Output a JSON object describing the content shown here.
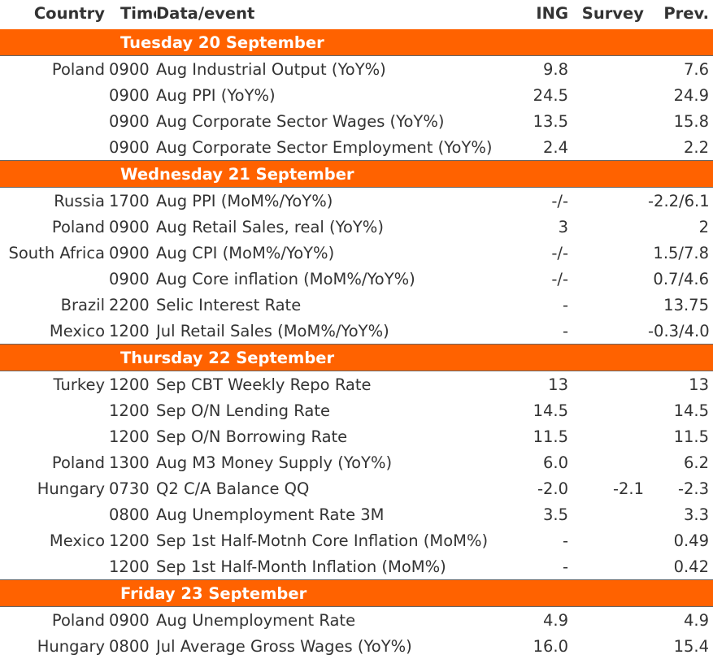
{
  "header": {
    "country": "Country",
    "time": "Time",
    "event": "Data/event",
    "ing": "ING",
    "survey": "Survey",
    "prev": "Prev."
  },
  "days": [
    {
      "label": "Tuesday 20 September",
      "rows": [
        {
          "country": "Poland",
          "time": "0900",
          "event": "Aug Industrial Output (YoY%)",
          "ing": "9.8",
          "survey": "",
          "prev": "7.6"
        },
        {
          "country": "",
          "time": "0900",
          "event": "Aug PPI (YoY%)",
          "ing": "24.5",
          "survey": "",
          "prev": "24.9"
        },
        {
          "country": "",
          "time": "0900",
          "event": "Aug Corporate Sector Wages (YoY%)",
          "ing": "13.5",
          "survey": "",
          "prev": "15.8"
        },
        {
          "country": "",
          "time": "0900",
          "event": "Aug Corporate Sector Employment (YoY%)",
          "ing": "2.4",
          "survey": "",
          "prev": "2.2"
        }
      ]
    },
    {
      "label": "Wednesday 21 September",
      "rows": [
        {
          "country": "Russia",
          "time": "1700",
          "event": "Aug PPI (MoM%/YoY%)",
          "ing": "-/-",
          "survey": "",
          "prev": "-2.2/6.1"
        },
        {
          "country": "Poland",
          "time": "0900",
          "event": "Aug Retail Sales, real (YoY%)",
          "ing": "3",
          "survey": "",
          "prev": "2"
        },
        {
          "country": "South Africa",
          "time": "0900",
          "event": "Aug CPI (MoM%/YoY%)",
          "ing": "-/-",
          "survey": "",
          "prev": "1.5/7.8"
        },
        {
          "country": "",
          "time": "0900",
          "event": "Aug Core inflation (MoM%/YoY%)",
          "ing": "-/-",
          "survey": "",
          "prev": "0.7/4.6"
        },
        {
          "country": "Brazil",
          "time": "2200",
          "event": "Selic Interest Rate",
          "ing": "-",
          "survey": "",
          "prev": "13.75"
        },
        {
          "country": "Mexico",
          "time": "1200",
          "event": "Jul Retail Sales (MoM%/YoY%)",
          "ing": "-",
          "survey": "",
          "prev": "-0.3/4.0"
        }
      ]
    },
    {
      "label": "Thursday 22 September",
      "rows": [
        {
          "country": "Turkey",
          "time": "1200",
          "event": "Sep CBT Weekly Repo Rate",
          "ing": "13",
          "survey": "",
          "prev": "13"
        },
        {
          "country": "",
          "time": "1200",
          "event": "Sep O/N Lending Rate",
          "ing": "14.5",
          "survey": "",
          "prev": "14.5"
        },
        {
          "country": "",
          "time": "1200",
          "event": "Sep O/N Borrowing Rate",
          "ing": "11.5",
          "survey": "",
          "prev": "11.5"
        },
        {
          "country": "Poland",
          "time": "1300",
          "event": "Aug M3 Money Supply (YoY%)",
          "ing": "6.0",
          "survey": "",
          "prev": "6.2"
        },
        {
          "country": "Hungary",
          "time": "0730",
          "event": "Q2 C/A Balance QQ",
          "ing": "-2.0",
          "survey": "-2.1",
          "prev": "-2.3"
        },
        {
          "country": "",
          "time": "0800",
          "event": "Aug Unemployment Rate 3M",
          "ing": "3.5",
          "survey": "",
          "prev": "3.3"
        },
        {
          "country": "Mexico",
          "time": "1200",
          "event": "Sep 1st Half-Motnh Core Inflation (MoM%)",
          "ing": "-",
          "survey": "",
          "prev": "0.49"
        },
        {
          "country": "",
          "time": "1200",
          "event": "Sep 1st Half-Month Inflation (MoM%)",
          "ing": "-",
          "survey": "",
          "prev": "0.42"
        }
      ]
    },
    {
      "label": "Friday 23 September",
      "rows": [
        {
          "country": "Poland",
          "time": "0900",
          "event": "Aug Unemployment Rate",
          "ing": "4.9",
          "survey": "",
          "prev": "4.9"
        },
        {
          "country": "Hungary",
          "time": "0800",
          "event": "Jul Average Gross Wages (YoY%)",
          "ing": "16.0",
          "survey": "",
          "prev": "15.4"
        }
      ]
    }
  ],
  "colors": {
    "day_band": "#ff6200",
    "text": "#333333"
  }
}
